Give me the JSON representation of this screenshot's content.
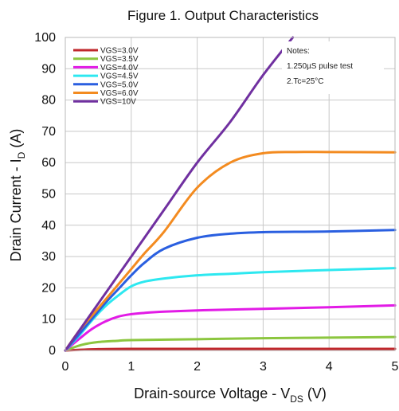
{
  "chart_data": {
    "type": "line",
    "title": "Figure 1. Output Characteristics",
    "xlabel": {
      "main": "Drain-source Voltage - V",
      "sub": "DS",
      "unit": " (V)"
    },
    "ylabel": {
      "main": "Drain Current -  I",
      "sub": "D",
      "unit": " (A)"
    },
    "xlim": [
      0,
      5
    ],
    "ylim": [
      0,
      100
    ],
    "x_ticks": [
      "0",
      "1",
      "2",
      "3",
      "4",
      "5"
    ],
    "y_ticks": [
      "0",
      "10",
      "20",
      "30",
      "40",
      "50",
      "60",
      "70",
      "80",
      "90",
      "100"
    ],
    "grid": true,
    "legend_position": "top-left",
    "notes": [
      "Notes:",
      "1.250µS pulse test",
      "2.Tc=25°C"
    ],
    "series": [
      {
        "name": "VGS=3.0V",
        "color": "#c0282d",
        "x": [
          0,
          0.5,
          1,
          2,
          3,
          4,
          5
        ],
        "y": [
          0,
          0.4,
          0.5,
          0.5,
          0.5,
          0.5,
          0.5
        ]
      },
      {
        "name": "VGS=3.5V",
        "color": "#8cc63f",
        "x": [
          0,
          0.25,
          0.5,
          0.8,
          1,
          2,
          3,
          4,
          5
        ],
        "y": [
          0,
          1.8,
          2.7,
          3.1,
          3.3,
          3.6,
          3.9,
          4.1,
          4.3
        ]
      },
      {
        "name": "VGS=4.0V",
        "color": "#e21be6",
        "x": [
          0,
          0.2,
          0.4,
          0.6,
          0.8,
          1,
          1.2,
          1.5,
          2,
          3,
          4,
          5
        ],
        "y": [
          0,
          3.5,
          6.8,
          9.2,
          10.8,
          11.6,
          12.0,
          12.4,
          12.8,
          13.3,
          13.8,
          14.4
        ]
      },
      {
        "name": "VGS=4.5V",
        "color": "#2de8f0",
        "x": [
          0,
          0.2,
          0.4,
          0.6,
          0.8,
          1,
          1.2,
          1.5,
          2,
          2.5,
          3,
          4,
          5
        ],
        "y": [
          0,
          4.5,
          9.5,
          14,
          17.5,
          20.5,
          22,
          23,
          24,
          24.5,
          25,
          25.7,
          26.3
        ]
      },
      {
        "name": "VGS=5.0V",
        "color": "#2a5fe0",
        "x": [
          0,
          0.2,
          0.4,
          0.6,
          0.8,
          1,
          1.2,
          1.5,
          2,
          2.5,
          3,
          4,
          5
        ],
        "y": [
          0,
          5,
          10,
          15,
          19.5,
          24,
          28,
          32.5,
          36,
          37.3,
          37.8,
          38,
          38.5
        ]
      },
      {
        "name": "VGS=6.0V",
        "color": "#f38b20",
        "x": [
          0,
          0.2,
          0.4,
          0.6,
          0.8,
          1,
          1.2,
          1.5,
          2,
          2.5,
          3,
          3.5,
          4,
          5
        ],
        "y": [
          0,
          6,
          11,
          16,
          21,
          26,
          31,
          38,
          52,
          60,
          63,
          63.4,
          63.4,
          63.3
        ]
      },
      {
        "name": "VGS=10V",
        "color": "#7030a0",
        "x": [
          0,
          0.5,
          1,
          1.5,
          2,
          2.5,
          3,
          3.45
        ],
        "y": [
          0,
          15,
          30,
          45,
          60,
          73,
          88,
          100
        ]
      }
    ]
  }
}
